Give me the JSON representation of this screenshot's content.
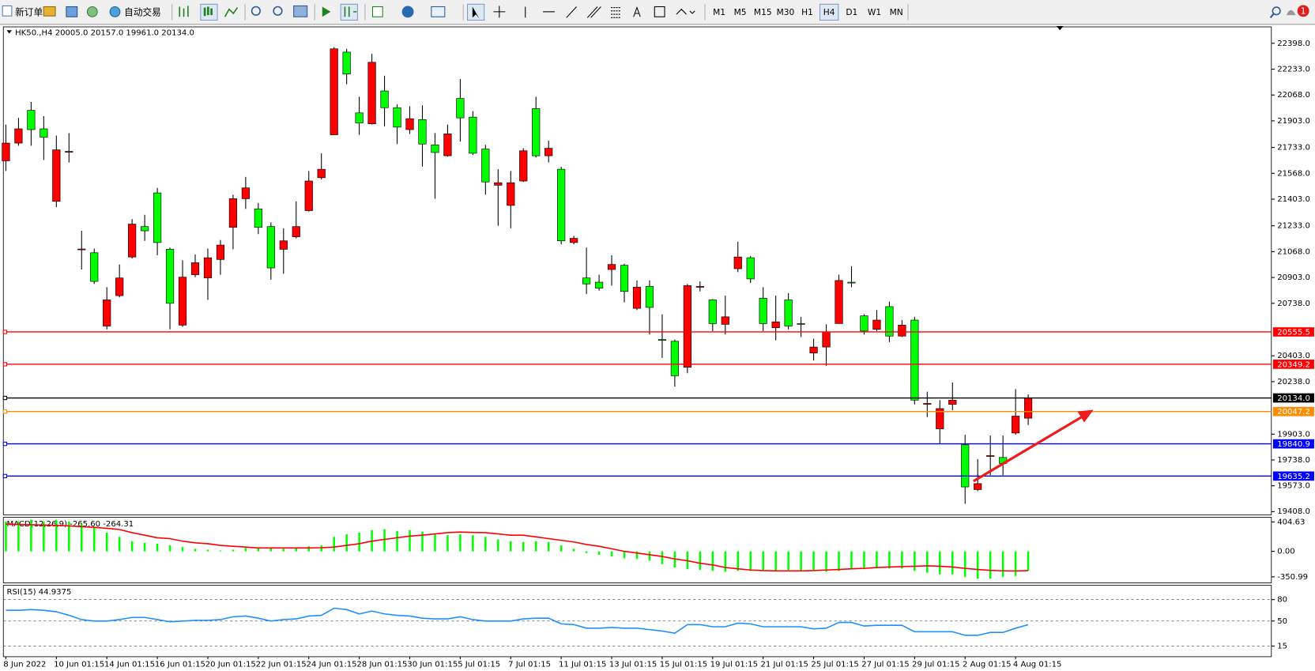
{
  "toolbar": {
    "new_order": "新订单",
    "auto_trading": "自动交易",
    "timeframes": [
      "M1",
      "M5",
      "M15",
      "M30",
      "H1",
      "H4",
      "D1",
      "W1",
      "MN"
    ],
    "active_timeframe": "H4",
    "notifications": "1"
  },
  "chart_data": [
    {
      "type": "candlestick",
      "title": "HK50.,H4  20005.0 20157.0 19961.0 20134.0",
      "categories": [
        "8 Jun 2022",
        null,
        null,
        null,
        "10 Jun 01:15",
        null,
        null,
        null,
        "14 Jun 01:15",
        null,
        null,
        null,
        "16 Jun 01:15",
        null,
        null,
        null,
        "20 Jun 01:15",
        null,
        null,
        null,
        "22 Jun 01:15",
        null,
        null,
        null,
        "24 Jun 01:15",
        null,
        null,
        null,
        "28 Jun 01:15",
        null,
        null,
        null,
        "30 Jun 01:15",
        null,
        null,
        null,
        "5 Jul 01:15",
        null,
        null,
        null,
        "7 Jul 01:15",
        null,
        null,
        null,
        "11 Jul 01:15",
        null,
        null,
        null,
        "13 Jul 01:15",
        null,
        null,
        null,
        "15 Jul 01:15",
        null,
        null,
        null,
        "19 Jul 01:15",
        null,
        null,
        null,
        "21 Jul 01:15",
        null,
        null,
        null,
        "25 Jul 01:15",
        null,
        null,
        null,
        "27 Jul 01:15",
        null,
        null,
        null,
        "29 Jul 01:15",
        null,
        null,
        null,
        "2 Aug 01:15",
        null,
        null,
        null,
        "4 Aug 01:15",
        null
      ],
      "open": [
        21648,
        21761,
        21970,
        21852,
        21389,
        21707,
        21083,
        21061,
        20593,
        20787,
        21034,
        21228,
        21443,
        21083,
        20599,
        20921,
        20900,
        21018,
        21223,
        21406,
        21341,
        21228,
        21083,
        21163,
        21330,
        21540,
        21814,
        22342,
        21954,
        21884,
        22094,
        21987,
        21847,
        21911,
        21750,
        21680,
        22046,
        21927,
        21723,
        21492,
        21363,
        21519,
        21981,
        21680,
        21594,
        21126,
        20900,
        20873,
        20954,
        20981,
        20706,
        20846,
        20507,
        20496,
        20330,
        20841,
        20760,
        20604,
        20959,
        21029,
        20771,
        20582,
        20760,
        20609,
        20421,
        20459,
        20609,
        20873,
        20658,
        20572,
        20717,
        20529,
        20631,
        20098,
        19937,
        20093,
        19835,
        19549,
        19765,
        19754,
        19910,
        20005
      ],
      "high": [
        21879,
        21922,
        22024,
        21933,
        21809,
        21825,
        21201,
        21088,
        20841,
        20986,
        21276,
        21303,
        21475,
        21094,
        21013,
        21050,
        21088,
        21142,
        21432,
        21545,
        21379,
        21255,
        21217,
        21389,
        21583,
        21696,
        22374,
        22363,
        22057,
        22331,
        22191,
        22008,
        21997,
        22003,
        21825,
        21879,
        22170,
        21965,
        21750,
        21594,
        21583,
        21728,
        22057,
        21777,
        21610,
        21169,
        21094,
        20921,
        21045,
        20991,
        20884,
        20884,
        20668,
        20507,
        20862,
        20878,
        20765,
        20787,
        21131,
        21040,
        20841,
        20787,
        20803,
        20652,
        20512,
        20604,
        20921,
        20975,
        20668,
        20695,
        20749,
        20631,
        20652,
        20174,
        20120,
        20233,
        19899,
        19743,
        19894,
        19894,
        20190,
        20157
      ],
      "low": [
        21583,
        21744,
        21744,
        21653,
        21352,
        21637,
        20954,
        20862,
        20572,
        20776,
        21024,
        21137,
        21045,
        20572,
        20588,
        20905,
        20760,
        20921,
        21083,
        21341,
        21180,
        20889,
        20927,
        21153,
        21325,
        21529,
        21814,
        22137,
        21814,
        21879,
        21868,
        21755,
        21820,
        21610,
        21406,
        21675,
        21771,
        21685,
        21432,
        21233,
        21217,
        21513,
        21669,
        21637,
        21115,
        21115,
        20798,
        20819,
        20851,
        20744,
        20695,
        20539,
        20389,
        20206,
        20292,
        20814,
        20561,
        20539,
        20937,
        20868,
        20561,
        20502,
        20572,
        20523,
        20373,
        20340,
        20609,
        20841,
        20539,
        20561,
        20491,
        20523,
        20093,
        20012,
        19840,
        20055,
        19458,
        19539,
        19641,
        19641,
        19899,
        19961
      ],
      "close": [
        21761,
        21852,
        21847,
        21798,
        21718,
        21708,
        21085,
        20878,
        20760,
        20900,
        21244,
        21201,
        21126,
        20738,
        20905,
        20997,
        21029,
        21110,
        21406,
        21475,
        21223,
        20964,
        21137,
        21228,
        21519,
        21594,
        22363,
        22202,
        21890,
        22277,
        21987,
        21863,
        21917,
        21755,
        21701,
        21820,
        21922,
        21696,
        21513,
        21508,
        21508,
        21712,
        21680,
        21728,
        21137,
        21153,
        20862,
        20835,
        20986,
        20814,
        20841,
        20712,
        20502,
        20276,
        20851,
        20846,
        20609,
        20652,
        21034,
        20894,
        20609,
        20620,
        20593,
        20604,
        20459,
        20555,
        20884,
        20868,
        20561,
        20631,
        20529,
        20599,
        20120,
        20099,
        20066,
        20120,
        19566,
        19587,
        19766,
        19716,
        20018,
        20134
      ],
      "up_color": "#ff0000",
      "down_color": "#00ff00",
      "ylim": [
        19388,
        22503
      ],
      "yticks": [
        {
          "value": 22398,
          "label": "22398.0"
        },
        {
          "value": 22233,
          "label": "22233.0"
        },
        {
          "value": 22068,
          "label": "22068.0"
        },
        {
          "value": 21903,
          "label": "21903.0"
        },
        {
          "value": 21733,
          "label": "21733.0"
        },
        {
          "value": 21568,
          "label": "21568.0"
        },
        {
          "value": 21403,
          "label": "21403.0"
        },
        {
          "value": 21233,
          "label": "21233.0"
        },
        {
          "value": 21068,
          "label": "21068.0"
        },
        {
          "value": 20903,
          "label": "20903.0"
        },
        {
          "value": 20738,
          "label": "20738.0"
        },
        {
          "value": 20403,
          "label": "20403.0"
        },
        {
          "value": 20238,
          "label": "20238.0"
        },
        {
          "value": 19903,
          "label": "19903.0"
        },
        {
          "value": 19738,
          "label": "19738.0"
        },
        {
          "value": 19573,
          "label": "19573.0"
        },
        {
          "value": 19408,
          "label": "19408.0"
        }
      ],
      "levels": [
        {
          "value": 20555.5,
          "label": "20555.5",
          "color": "#ff0000"
        },
        {
          "value": 20349.2,
          "label": "20349.2",
          "color": "#ff0000"
        },
        {
          "value": 20134,
          "label": "20134.0",
          "color": "#000000"
        },
        {
          "value": 20047.2,
          "label": "20047.2",
          "color": "#ff8c00"
        },
        {
          "value": 19840.9,
          "label": "19840.9",
          "color": "#0000ff"
        },
        {
          "value": 19635.2,
          "label": "19635.2",
          "color": "#0000ff"
        }
      ]
    },
    {
      "type": "macd",
      "title": "MACD(12,26,9) -265.60 -264.31",
      "histogram": {
        "color": "#00ff00",
        "values": [
          410,
          410,
          433,
          410,
          433,
          410,
          374,
          339,
          257,
          199,
          140,
          117,
          105,
          82,
          59,
          35,
          23,
          12,
          23,
          47,
          47,
          47,
          35,
          47,
          70,
          82,
          199,
          234,
          257,
          293,
          304,
          281,
          293,
          269,
          234,
          222,
          234,
          222,
          199,
          164,
          140,
          129,
          140,
          129,
          82,
          35,
          -23,
          -47,
          -70,
          -94,
          -105,
          -129,
          -176,
          -222,
          -246,
          -257,
          -269,
          -281,
          -269,
          -269,
          -269,
          -269,
          -257,
          -269,
          -269,
          -281,
          -269,
          -246,
          -246,
          -234,
          -234,
          -234,
          -269,
          -293,
          -316,
          -316,
          -351,
          -374,
          -374,
          -351,
          -339,
          -265.6
        ]
      },
      "signal": {
        "color": "#ff0000",
        "values": [
          374,
          370,
          366,
          362,
          358,
          350,
          340,
          329,
          317,
          300,
          257,
          222,
          187,
          175,
          140,
          117,
          105,
          82,
          70,
          59,
          47,
          47,
          47,
          47,
          47,
          50,
          59,
          82,
          105,
          140,
          164,
          187,
          210,
          222,
          240,
          257,
          265,
          260,
          257,
          240,
          222,
          222,
          199,
          175,
          152,
          129,
          94,
          70,
          35,
          0,
          -23,
          -47,
          -70,
          -105,
          -129,
          -164,
          -187,
          -222,
          -240,
          -257,
          -265,
          -269,
          -269,
          -269,
          -265,
          -257,
          -250,
          -240,
          -234,
          -222,
          -216,
          -210,
          -205,
          -199,
          -205,
          -216,
          -234,
          -250,
          -262,
          -268,
          -270,
          -264.31
        ]
      },
      "ylim": [
        -433,
        468
      ],
      "yticks": [
        404.63,
        {
          "value": 0,
          "label": "0.00"
        },
        -350.99
      ]
    },
    {
      "type": "line",
      "title": "RSI(15) 44.9375",
      "color": "#1e90ff",
      "values": [
        65,
        65,
        66,
        65,
        63,
        58,
        52,
        50,
        50,
        52,
        55,
        55,
        52,
        49,
        50,
        51,
        51,
        52,
        56,
        57,
        54,
        50,
        52,
        53,
        57,
        58,
        68,
        66,
        60,
        64,
        60,
        58,
        57,
        54,
        53,
        53,
        56,
        52,
        50,
        50,
        50,
        53,
        54,
        54,
        46,
        45,
        40,
        40,
        41,
        40,
        40,
        38,
        36,
        33,
        45,
        45,
        42,
        42,
        47,
        46,
        42,
        42,
        42,
        42,
        39,
        40,
        48,
        48,
        43,
        44,
        44,
        44,
        35,
        35,
        35,
        35,
        30,
        30,
        34,
        34,
        40,
        44.9375
      ],
      "ylim": [
        0,
        100
      ],
      "yticks": [
        80,
        50,
        15
      ],
      "grid": "dashed"
    }
  ]
}
